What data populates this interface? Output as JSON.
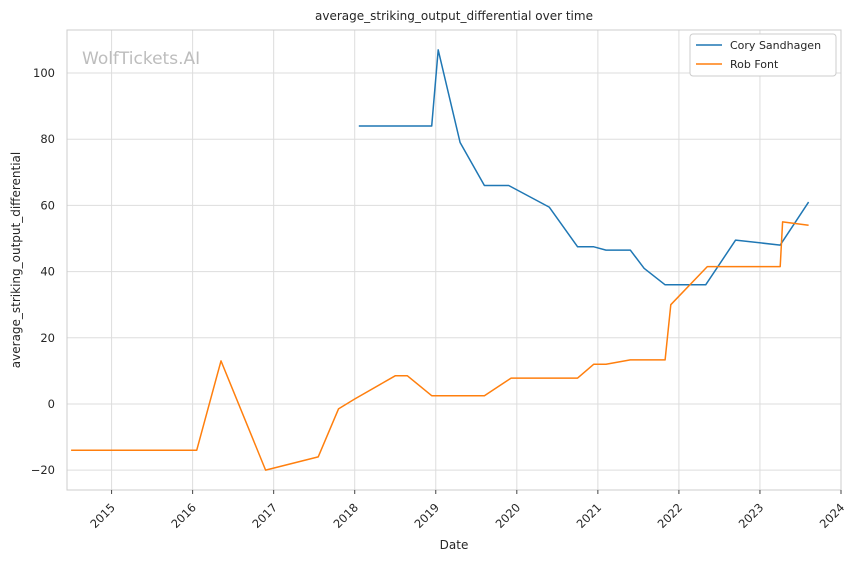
{
  "chart_data": {
    "type": "line",
    "title": "average_striking_output_differential over time",
    "xlabel": "Date",
    "ylabel": "average_striking_output_differential",
    "watermark": "WolfTickets.AI",
    "xlim": [
      2014.45,
      2024.0
    ],
    "ylim": [
      -26,
      113
    ],
    "x_ticks": [
      2015,
      2016,
      2017,
      2018,
      2019,
      2020,
      2021,
      2022,
      2023,
      2024
    ],
    "x_tick_labels": [
      "2015",
      "2016",
      "2017",
      "2018",
      "2019",
      "2020",
      "2021",
      "2022",
      "2023",
      "2024"
    ],
    "y_ticks": [
      -20,
      0,
      20,
      40,
      60,
      80,
      100
    ],
    "y_tick_labels": [
      "−20",
      "0",
      "20",
      "40",
      "60",
      "80",
      "100"
    ],
    "grid": true,
    "legend_position": "top-right",
    "series": [
      {
        "name": "Cory Sandhagen",
        "color": "#1f77b4",
        "points": [
          [
            2018.05,
            84
          ],
          [
            2018.95,
            84
          ],
          [
            2019.03,
            107
          ],
          [
            2019.3,
            79
          ],
          [
            2019.6,
            66
          ],
          [
            2019.9,
            66
          ],
          [
            2020.4,
            59.5
          ],
          [
            2020.75,
            47.5
          ],
          [
            2020.95,
            47.5
          ],
          [
            2021.1,
            46.5
          ],
          [
            2021.4,
            46.5
          ],
          [
            2021.57,
            41
          ],
          [
            2021.83,
            36
          ],
          [
            2022.33,
            36
          ],
          [
            2022.7,
            49.5
          ],
          [
            2023.25,
            48
          ],
          [
            2023.6,
            61
          ]
        ]
      },
      {
        "name": "Rob Font",
        "color": "#ff7f0e",
        "points": [
          [
            2014.5,
            -14
          ],
          [
            2016.05,
            -14
          ],
          [
            2016.35,
            13
          ],
          [
            2016.9,
            -20
          ],
          [
            2017.55,
            -16
          ],
          [
            2017.8,
            -1.5
          ],
          [
            2018.0,
            1.5
          ],
          [
            2018.5,
            8.5
          ],
          [
            2018.65,
            8.5
          ],
          [
            2018.95,
            2.5
          ],
          [
            2019.6,
            2.5
          ],
          [
            2019.93,
            7.8
          ],
          [
            2020.75,
            7.8
          ],
          [
            2020.95,
            12
          ],
          [
            2021.1,
            12
          ],
          [
            2021.4,
            13.3
          ],
          [
            2021.83,
            13.3
          ],
          [
            2021.9,
            30
          ],
          [
            2022.35,
            41.5
          ],
          [
            2023.25,
            41.5
          ],
          [
            2023.28,
            55
          ],
          [
            2023.6,
            54
          ]
        ]
      }
    ]
  }
}
